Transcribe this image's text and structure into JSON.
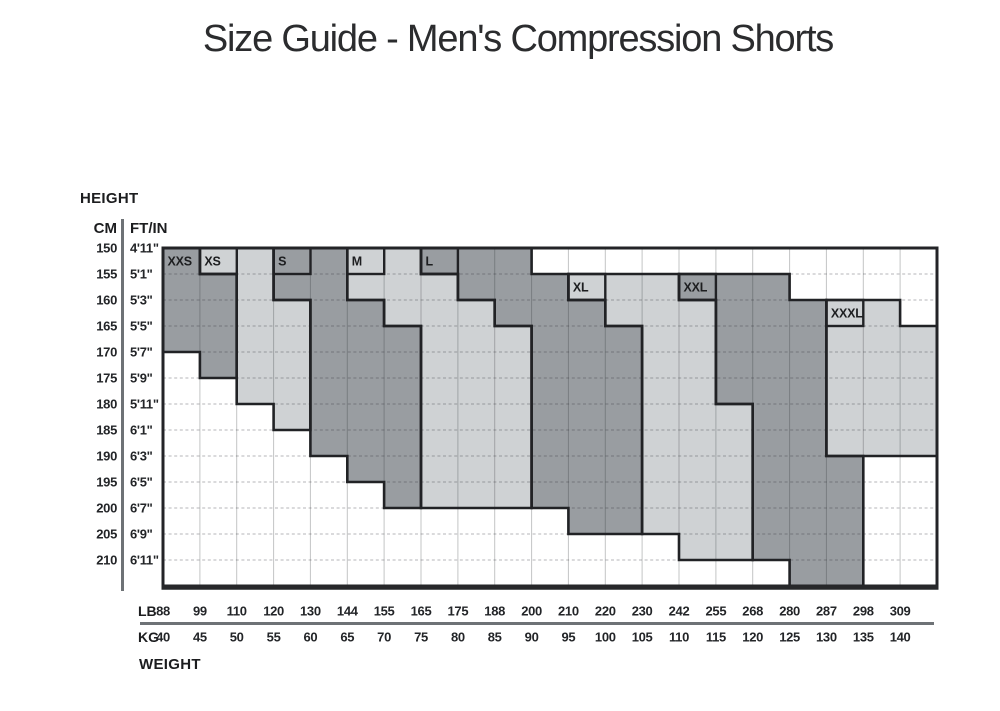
{
  "title": "Size Guide - Men's Compression Shorts",
  "axes": {
    "height_label": "HEIGHT",
    "cm_header": "CM",
    "ftin_header": "FT/IN",
    "lb_header": "LB",
    "kg_header": "KG",
    "weight_label": "WEIGHT"
  },
  "chart_data": {
    "type": "heatmap",
    "title": "Size Guide - Men's Compression Shorts",
    "x": {
      "label": "WEIGHT",
      "lb": [
        88,
        99,
        110,
        120,
        130,
        144,
        155,
        165,
        175,
        188,
        200,
        210,
        220,
        230,
        242,
        255,
        268,
        280,
        287,
        298,
        309
      ],
      "kg": [
        40,
        45,
        50,
        55,
        60,
        65,
        70,
        75,
        80,
        85,
        90,
        95,
        100,
        105,
        110,
        115,
        120,
        125,
        130,
        135,
        140
      ]
    },
    "y": {
      "label": "HEIGHT",
      "cm": [
        150,
        155,
        160,
        165,
        170,
        175,
        180,
        185,
        190,
        195,
        200,
        205,
        210
      ],
      "ftin": [
        "4'11\"",
        "5'1\"",
        "5'3\"",
        "5'5\"",
        "5'7\"",
        "5'9\"",
        "5'11\"",
        "6'1\"",
        "6'3\"",
        "6'5\"",
        "6'7\"",
        "6'9\"",
        "6'11\""
      ]
    },
    "colors": {
      "dark": "#999da1",
      "light": "#cfd2d4",
      "border": "#212225",
      "white": "#ffffff"
    },
    "legend_note": "grid cells span weight columns (LB/KG lines) and height rows (CM lines); regions listed as [rowIndex, firstCol, lastCol]",
    "regions": [
      {
        "name": "XXS",
        "shade": "dark",
        "label_cell": [
          0,
          0
        ],
        "label_box": false,
        "spans": [
          [
            0,
            0,
            0
          ],
          [
            1,
            0,
            1
          ],
          [
            2,
            0,
            1
          ],
          [
            3,
            0,
            1
          ],
          [
            4,
            1,
            1
          ]
        ]
      },
      {
        "name": "XS",
        "shade": "light",
        "label_cell": [
          1,
          0
        ],
        "label_box": true,
        "spans": [
          [
            0,
            1,
            2
          ],
          [
            1,
            2,
            2
          ],
          [
            2,
            2,
            3
          ],
          [
            3,
            2,
            3
          ],
          [
            4,
            2,
            3
          ],
          [
            5,
            2,
            3
          ],
          [
            6,
            3,
            3
          ]
        ]
      },
      {
        "name": "S",
        "shade": "dark",
        "label_cell": [
          3,
          0
        ],
        "label_box": true,
        "spans": [
          [
            0,
            3,
            4
          ],
          [
            1,
            3,
            4
          ],
          [
            2,
            4,
            5
          ],
          [
            3,
            4,
            6
          ],
          [
            4,
            4,
            6
          ],
          [
            5,
            4,
            6
          ],
          [
            6,
            4,
            6
          ],
          [
            7,
            4,
            6
          ],
          [
            8,
            5,
            6
          ],
          [
            9,
            6,
            6
          ]
        ]
      },
      {
        "name": "M",
        "shade": "light",
        "label_cell": [
          5,
          0
        ],
        "label_box": true,
        "spans": [
          [
            0,
            5,
            6
          ],
          [
            1,
            5,
            7
          ],
          [
            2,
            6,
            8
          ],
          [
            3,
            7,
            9
          ],
          [
            4,
            7,
            9
          ],
          [
            5,
            7,
            9
          ],
          [
            6,
            7,
            9
          ],
          [
            7,
            7,
            9
          ],
          [
            8,
            7,
            9
          ],
          [
            9,
            7,
            9
          ]
        ]
      },
      {
        "name": "L",
        "shade": "dark",
        "label_cell": [
          7,
          0
        ],
        "label_box": true,
        "spans": [
          [
            0,
            7,
            9
          ],
          [
            1,
            8,
            10
          ],
          [
            2,
            9,
            11
          ],
          [
            3,
            10,
            12
          ],
          [
            4,
            10,
            12
          ],
          [
            5,
            10,
            12
          ],
          [
            6,
            10,
            12
          ],
          [
            7,
            10,
            12
          ],
          [
            8,
            10,
            12
          ],
          [
            9,
            10,
            12
          ],
          [
            10,
            11,
            12
          ]
        ]
      },
      {
        "name": "XL",
        "shade": "light",
        "label_cell": [
          11,
          1
        ],
        "label_box": true,
        "spans": [
          [
            1,
            11,
            13
          ],
          [
            2,
            12,
            14
          ],
          [
            3,
            13,
            14
          ],
          [
            4,
            13,
            14
          ],
          [
            5,
            13,
            14
          ],
          [
            6,
            13,
            15
          ],
          [
            7,
            13,
            15
          ],
          [
            8,
            13,
            15
          ],
          [
            9,
            13,
            15
          ],
          [
            10,
            13,
            15
          ],
          [
            11,
            14,
            15
          ]
        ]
      },
      {
        "name": "XXL",
        "shade": "dark",
        "label_cell": [
          14,
          1
        ],
        "label_box": true,
        "spans": [
          [
            1,
            14,
            16
          ],
          [
            2,
            15,
            17
          ],
          [
            3,
            15,
            17
          ],
          [
            4,
            15,
            17
          ],
          [
            5,
            15,
            17
          ],
          [
            6,
            16,
            17
          ],
          [
            7,
            16,
            17
          ],
          [
            8,
            16,
            18
          ],
          [
            9,
            16,
            18
          ],
          [
            10,
            16,
            18
          ],
          [
            11,
            16,
            18
          ],
          [
            12,
            17,
            18
          ]
        ]
      },
      {
        "name": "XXXL",
        "shade": "light",
        "label_cell": [
          18,
          2
        ],
        "label_box": true,
        "spans": [
          [
            2,
            18,
            19
          ],
          [
            3,
            18,
            20
          ],
          [
            4,
            18,
            20
          ],
          [
            5,
            18,
            20
          ],
          [
            6,
            18,
            20
          ],
          [
            7,
            18,
            20
          ]
        ]
      }
    ]
  }
}
